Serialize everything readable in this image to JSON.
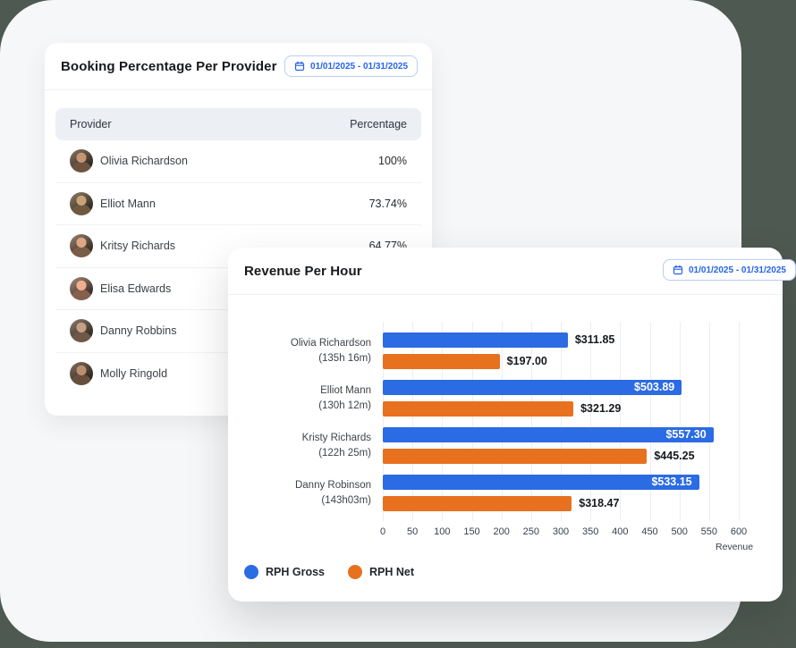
{
  "colors": {
    "page_bg": "#4E5951",
    "panel_bg": "#F6F7F8",
    "card_bg": "#FFFFFF",
    "accent_blue": "#2563EB",
    "bar_blue": "#2B6BE3",
    "bar_orange": "#E8711F",
    "table_header_bg": "#ECF0F4"
  },
  "booking_card": {
    "title": "Booking Percentage Per Provider",
    "date_range": "01/01/2025 - 01/31/2025",
    "columns": {
      "provider": "Provider",
      "percentage": "Percentage"
    },
    "rows": [
      {
        "name": "Olivia Richardson",
        "percentage": "100%"
      },
      {
        "name": "Elliot Mann",
        "percentage": "73.74%"
      },
      {
        "name": "Kritsy Richards",
        "percentage": "64.77%"
      },
      {
        "name": "Elisa Edwards",
        "percentage": ""
      },
      {
        "name": "Danny Robbins",
        "percentage": ""
      },
      {
        "name": "Molly Ringold",
        "percentage": ""
      }
    ]
  },
  "revenue_card": {
    "title": "Revenue Per Hour",
    "date_range": "01/01/2025 - 01/31/2025",
    "legend": [
      {
        "label": "RPH Gross",
        "color": "#2B6BE3"
      },
      {
        "label": "RPH Net",
        "color": "#E8711F"
      }
    ]
  },
  "chart_data": {
    "type": "bar",
    "orientation": "horizontal",
    "title": "Revenue Per Hour",
    "xlabel": "Revenue",
    "xlim": [
      0,
      600
    ],
    "x_ticks": [
      0,
      50,
      100,
      150,
      200,
      250,
      300,
      350,
      400,
      450,
      500,
      550,
      600
    ],
    "grid": true,
    "legend_position": "bottom-left",
    "categories": [
      {
        "name": "Olivia Richardson",
        "hours": "(135h 16m)"
      },
      {
        "name": "Elliot Mann",
        "hours": "(130h 12m)"
      },
      {
        "name": "Kristy Richards",
        "hours": "(122h 25m)"
      },
      {
        "name": "Danny Robinson",
        "hours": "(143h03m)"
      }
    ],
    "series": [
      {
        "name": "RPH Gross",
        "color": "#2B6BE3",
        "values": [
          311.85,
          503.89,
          557.3,
          533.15
        ],
        "labels": [
          "$311.85",
          "$503.89",
          "$557.30",
          "$533.15"
        ],
        "label_inside": [
          false,
          true,
          true,
          true
        ]
      },
      {
        "name": "RPH Net",
        "color": "#E8711F",
        "values": [
          197.0,
          321.29,
          445.25,
          318.47
        ],
        "labels": [
          "$197.00",
          "$321.29",
          "$445.25",
          "$318.47"
        ],
        "label_inside": [
          false,
          false,
          false,
          false
        ]
      }
    ]
  }
}
